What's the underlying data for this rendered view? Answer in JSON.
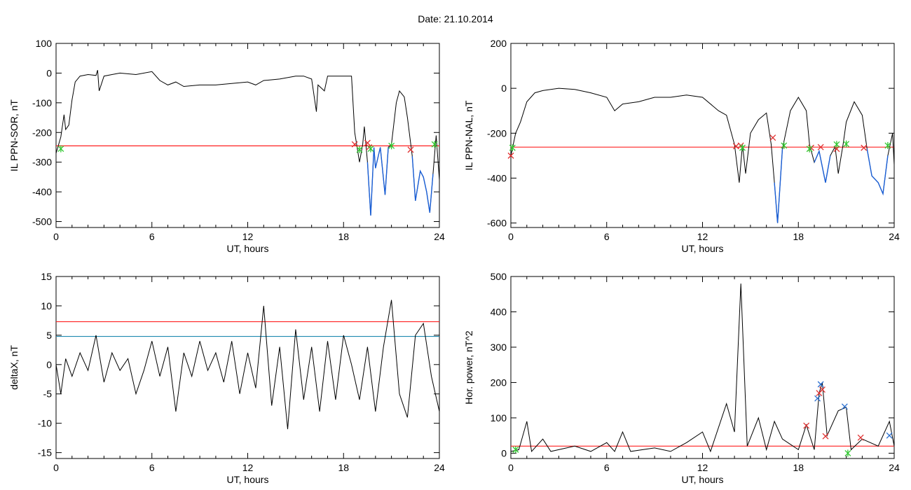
{
  "page": {
    "title": "Date:  21.10.2014"
  },
  "colors": {
    "trace": "#000000",
    "threshold_red": "#ff2020",
    "threshold_cyan": "#1f8ab0",
    "segment_blue": "#1a5fd6",
    "marker_red": "#e03030",
    "marker_green": "#30c830",
    "marker_blue": "#2a6fd0"
  },
  "chart_data": [
    {
      "type": "line",
      "xlabel": "UT, hours",
      "ylabel": "IL PPN-SOR, nT",
      "xlim": [
        0,
        24
      ],
      "ylim": [
        -520,
        100
      ],
      "xticks": [
        0,
        6,
        12,
        18,
        24
      ],
      "yticks": [
        -500,
        -400,
        -300,
        -200,
        -100,
        0,
        100
      ],
      "threshold": -245,
      "series": [
        {
          "values": [
            [
              0,
              -270
            ],
            [
              0.3,
              -215
            ],
            [
              0.5,
              -140
            ],
            [
              0.6,
              -190
            ],
            [
              0.8,
              -175
            ],
            [
              1.0,
              -90
            ],
            [
              1.2,
              -30
            ],
            [
              1.5,
              -10
            ],
            [
              2.0,
              -5
            ],
            [
              2.5,
              -8
            ],
            [
              2.6,
              10
            ],
            [
              2.7,
              -60
            ],
            [
              3.0,
              -10
            ],
            [
              3.5,
              -5
            ],
            [
              4.0,
              0
            ],
            [
              5.0,
              -5
            ],
            [
              6.0,
              5
            ],
            [
              6.5,
              -25
            ],
            [
              7.0,
              -40
            ],
            [
              7.5,
              -30
            ],
            [
              8.0,
              -45
            ],
            [
              9.0,
              -40
            ],
            [
              10.0,
              -40
            ],
            [
              11.0,
              -35
            ],
            [
              12.0,
              -30
            ],
            [
              12.5,
              -40
            ],
            [
              13.0,
              -25
            ],
            [
              14.0,
              -20
            ],
            [
              15.0,
              -10
            ],
            [
              15.5,
              -10
            ],
            [
              16.0,
              -20
            ],
            [
              16.3,
              -130
            ],
            [
              16.4,
              -40
            ],
            [
              16.8,
              -60
            ],
            [
              17.0,
              -10
            ],
            [
              18.0,
              -10
            ],
            [
              18.5,
              -10
            ],
            [
              18.7,
              -200
            ],
            [
              19.0,
              -300
            ],
            [
              19.2,
              -240
            ],
            [
              19.3,
              -180
            ],
            [
              19.5,
              -300
            ],
            [
              19.7,
              -480
            ],
            [
              19.9,
              -250
            ],
            [
              20.0,
              -320
            ],
            [
              20.3,
              -250
            ],
            [
              20.6,
              -410
            ],
            [
              20.8,
              -250
            ],
            [
              21.0,
              -240
            ],
            [
              21.3,
              -100
            ],
            [
              21.5,
              -60
            ],
            [
              21.8,
              -80
            ],
            [
              22.0,
              -150
            ],
            [
              22.3,
              -280
            ],
            [
              22.5,
              -430
            ],
            [
              22.8,
              -330
            ],
            [
              23.0,
              -350
            ],
            [
              23.2,
              -400
            ],
            [
              23.4,
              -470
            ],
            [
              23.6,
              -340
            ],
            [
              23.8,
              -210
            ],
            [
              24.0,
              -360
            ]
          ]
        }
      ],
      "markers_red": [
        [
          18.7,
          -240
        ],
        [
          19.5,
          -235
        ],
        [
          19.6,
          -250
        ],
        [
          22.2,
          -258
        ]
      ],
      "markers_green": [
        [
          0.3,
          -255
        ],
        [
          19.0,
          -258
        ],
        [
          19.7,
          -255
        ],
        [
          21.0,
          -245
        ],
        [
          23.7,
          -240
        ]
      ]
    },
    {
      "type": "line",
      "xlabel": "UT, hours",
      "ylabel": "IL PPN-NAL, nT",
      "xlim": [
        0,
        24
      ],
      "ylim": [
        -620,
        200
      ],
      "xticks": [
        0,
        6,
        12,
        18,
        24
      ],
      "yticks": [
        -600,
        -400,
        -200,
        0,
        200
      ],
      "threshold": -262,
      "series": [
        {
          "values": [
            [
              0,
              -300
            ],
            [
              0.3,
              -200
            ],
            [
              0.6,
              -150
            ],
            [
              1.0,
              -60
            ],
            [
              1.5,
              -20
            ],
            [
              2.0,
              -10
            ],
            [
              3.0,
              0
            ],
            [
              4.0,
              -5
            ],
            [
              5.0,
              -20
            ],
            [
              6.0,
              -40
            ],
            [
              6.5,
              -100
            ],
            [
              7.0,
              -70
            ],
            [
              8.0,
              -60
            ],
            [
              9.0,
              -40
            ],
            [
              10.0,
              -40
            ],
            [
              11.0,
              -30
            ],
            [
              12.0,
              -40
            ],
            [
              13.0,
              -100
            ],
            [
              13.5,
              -120
            ],
            [
              14.0,
              -250
            ],
            [
              14.3,
              -420
            ],
            [
              14.5,
              -250
            ],
            [
              14.7,
              -380
            ],
            [
              15.0,
              -200
            ],
            [
              15.5,
              -140
            ],
            [
              16.0,
              -110
            ],
            [
              16.3,
              -250
            ],
            [
              16.5,
              -420
            ],
            [
              16.7,
              -600
            ],
            [
              17.0,
              -270
            ],
            [
              17.5,
              -100
            ],
            [
              18.0,
              -40
            ],
            [
              18.5,
              -100
            ],
            [
              18.7,
              -250
            ],
            [
              19.0,
              -330
            ],
            [
              19.3,
              -280
            ],
            [
              19.7,
              -420
            ],
            [
              20.0,
              -300
            ],
            [
              20.3,
              -260
            ],
            [
              20.5,
              -380
            ],
            [
              20.8,
              -250
            ],
            [
              21.0,
              -150
            ],
            [
              21.5,
              -60
            ],
            [
              22.0,
              -120
            ],
            [
              22.3,
              -270
            ],
            [
              22.6,
              -390
            ],
            [
              23.0,
              -420
            ],
            [
              23.3,
              -470
            ],
            [
              23.6,
              -300
            ],
            [
              23.9,
              -200
            ],
            [
              24.0,
              -340
            ]
          ]
        }
      ],
      "markers_red": [
        [
          0,
          -300
        ],
        [
          14.1,
          -258
        ],
        [
          14.4,
          -255
        ],
        [
          16.4,
          -220
        ],
        [
          18.8,
          -265
        ],
        [
          19.4,
          -262
        ],
        [
          20.4,
          -270
        ],
        [
          22.1,
          -265
        ]
      ],
      "markers_green": [
        [
          0.1,
          -265
        ],
        [
          14.5,
          -265
        ],
        [
          17.1,
          -255
        ],
        [
          18.7,
          -270
        ],
        [
          20.4,
          -250
        ],
        [
          21.0,
          -248
        ],
        [
          23.6,
          -255
        ]
      ]
    },
    {
      "type": "line",
      "xlabel": "UT, hours",
      "ylabel": "deltaX, nT",
      "xlim": [
        0,
        24
      ],
      "ylim": [
        -16,
        15
      ],
      "xticks": [
        0,
        6,
        12,
        18,
        24
      ],
      "yticks": [
        -15,
        -10,
        -5,
        0,
        5,
        10,
        15
      ],
      "thresholds": [
        7.3,
        4.8
      ],
      "series": [
        {
          "values": [
            [
              0,
              0
            ],
            [
              0.3,
              -5
            ],
            [
              0.6,
              1
            ],
            [
              1.0,
              -2
            ],
            [
              1.5,
              2
            ],
            [
              2.0,
              -1
            ],
            [
              2.5,
              5
            ],
            [
              3.0,
              -3
            ],
            [
              3.5,
              2
            ],
            [
              4.0,
              -1
            ],
            [
              4.5,
              1
            ],
            [
              5.0,
              -5
            ],
            [
              5.5,
              -1
            ],
            [
              6.0,
              4
            ],
            [
              6.5,
              -2
            ],
            [
              7.0,
              3
            ],
            [
              7.5,
              -8
            ],
            [
              8.0,
              2
            ],
            [
              8.5,
              -2
            ],
            [
              9.0,
              4
            ],
            [
              9.5,
              -1
            ],
            [
              10.0,
              2
            ],
            [
              10.5,
              -3
            ],
            [
              11.0,
              4
            ],
            [
              11.5,
              -5
            ],
            [
              12.0,
              2
            ],
            [
              12.5,
              -4
            ],
            [
              13.0,
              10
            ],
            [
              13.5,
              -7
            ],
            [
              14.0,
              3
            ],
            [
              14.5,
              -11
            ],
            [
              15.0,
              6
            ],
            [
              15.5,
              -6
            ],
            [
              16.0,
              3
            ],
            [
              16.5,
              -8
            ],
            [
              17.0,
              4
            ],
            [
              17.5,
              -6
            ],
            [
              18.0,
              5
            ],
            [
              18.5,
              0
            ],
            [
              19.0,
              -6
            ],
            [
              19.5,
              3
            ],
            [
              20.0,
              -8
            ],
            [
              20.5,
              3
            ],
            [
              21.0,
              11
            ],
            [
              21.5,
              -5
            ],
            [
              22.0,
              -9
            ],
            [
              22.5,
              5
            ],
            [
              23.0,
              7
            ],
            [
              23.5,
              -2
            ],
            [
              24.0,
              -8
            ]
          ]
        }
      ]
    },
    {
      "type": "line",
      "xlabel": "UT, hours",
      "ylabel": "Hor. power, nT^2",
      "xlim": [
        0,
        24
      ],
      "ylim": [
        -15,
        500
      ],
      "xticks": [
        0,
        6,
        12,
        18,
        24
      ],
      "yticks": [
        0,
        100,
        200,
        300,
        400,
        500
      ],
      "threshold": 20,
      "series": [
        {
          "values": [
            [
              0,
              5
            ],
            [
              0.5,
              10
            ],
            [
              1.0,
              90
            ],
            [
              1.3,
              5
            ],
            [
              2.0,
              40
            ],
            [
              2.5,
              5
            ],
            [
              4.0,
              20
            ],
            [
              5.0,
              5
            ],
            [
              6.0,
              30
            ],
            [
              6.5,
              5
            ],
            [
              7.0,
              60
            ],
            [
              7.5,
              5
            ],
            [
              9.0,
              15
            ],
            [
              10.0,
              5
            ],
            [
              11.0,
              30
            ],
            [
              12.0,
              60
            ],
            [
              12.5,
              5
            ],
            [
              13.5,
              140
            ],
            [
              14.0,
              60
            ],
            [
              14.4,
              480
            ],
            [
              14.8,
              20
            ],
            [
              15.5,
              100
            ],
            [
              16.0,
              10
            ],
            [
              16.5,
              90
            ],
            [
              17.0,
              40
            ],
            [
              18.0,
              10
            ],
            [
              18.5,
              80
            ],
            [
              19.0,
              10
            ],
            [
              19.3,
              170
            ],
            [
              19.5,
              200
            ],
            [
              19.8,
              50
            ],
            [
              20.5,
              120
            ],
            [
              21.0,
              130
            ],
            [
              21.3,
              10
            ],
            [
              22.0,
              40
            ],
            [
              23.0,
              20
            ],
            [
              23.7,
              90
            ],
            [
              24.0,
              20
            ]
          ]
        }
      ],
      "markers_red": [
        [
          18.5,
          78
        ],
        [
          19.3,
          170
        ],
        [
          19.5,
          180
        ],
        [
          19.7,
          48
        ],
        [
          21.9,
          44
        ]
      ],
      "markers_green": [
        [
          0.3,
          10
        ],
        [
          21.1,
          0
        ]
      ],
      "markers_blue": [
        [
          19.2,
          155
        ],
        [
          19.4,
          195
        ],
        [
          20.9,
          132
        ],
        [
          23.7,
          50
        ]
      ]
    }
  ]
}
